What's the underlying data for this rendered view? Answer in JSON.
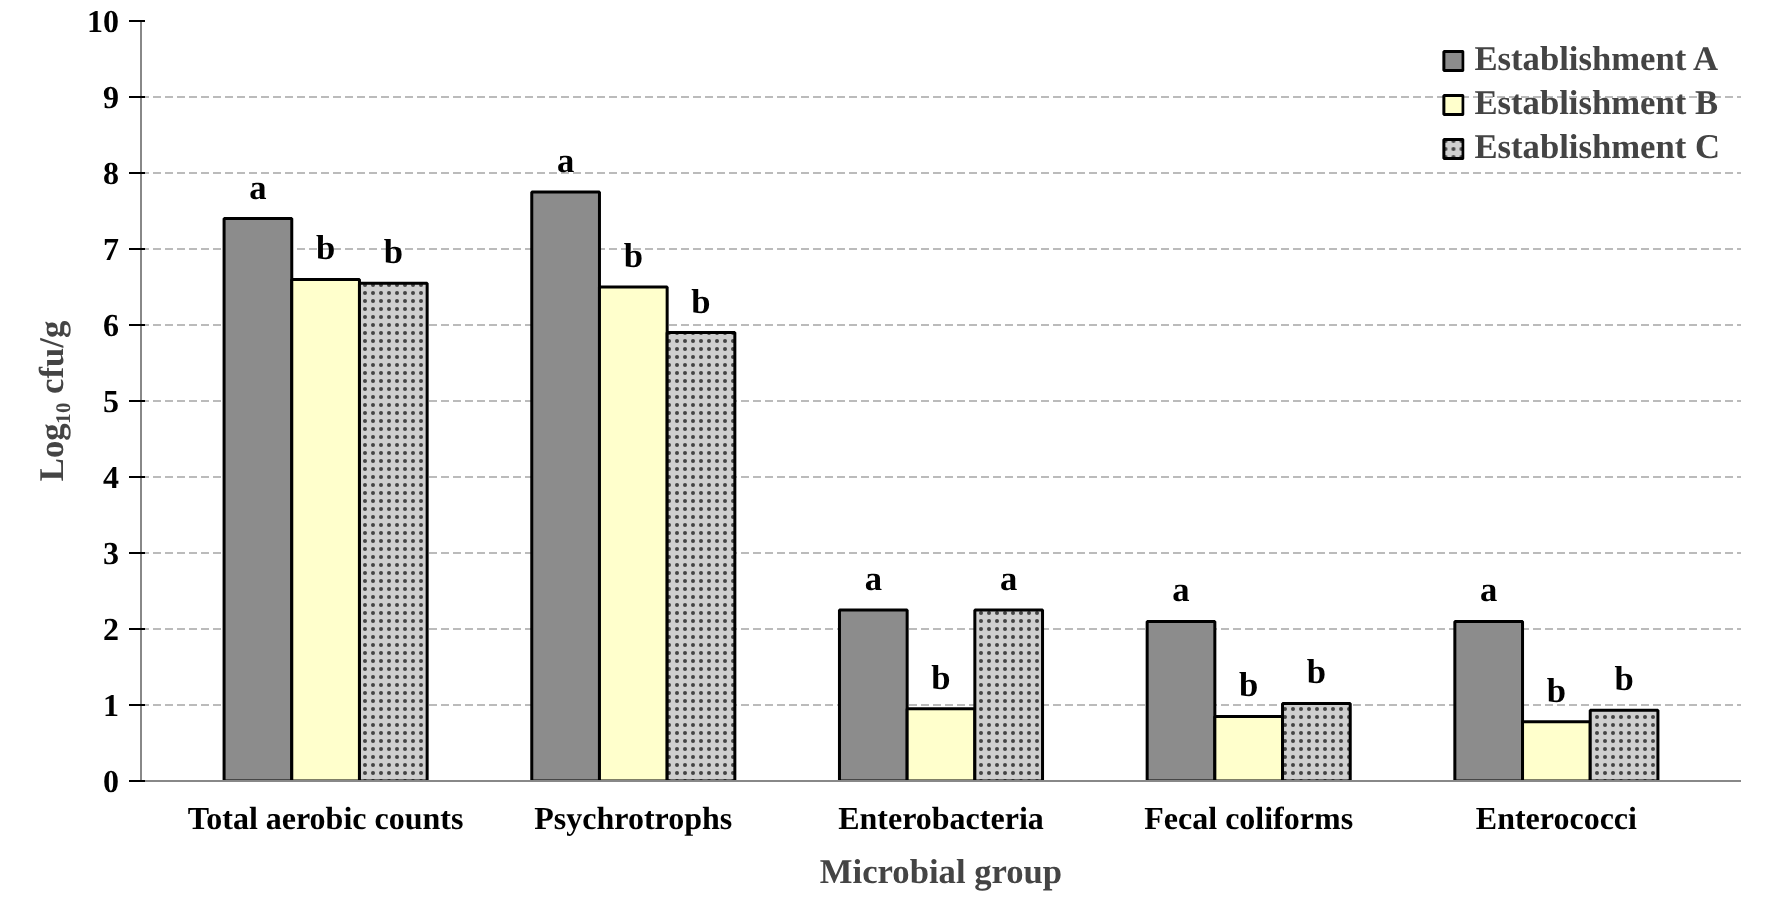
{
  "chart_data": {
    "type": "bar",
    "xlabel": "Microbial group",
    "ylabel": "Log₁₀ cfu/g",
    "categories": [
      "Total aerobic counts",
      "Psychrotrophs",
      "Enterobacteria",
      "Fecal coliforms",
      "Enterococci"
    ],
    "series": [
      {
        "name": "Establishment A",
        "color": "#8c8c8c",
        "values": [
          7.4,
          7.75,
          2.25,
          2.1,
          2.1
        ],
        "value_labels": [
          "a",
          "a",
          "a",
          "a",
          "a"
        ]
      },
      {
        "name": "Establishment B",
        "color": "#ffffcc",
        "values": [
          6.6,
          6.5,
          0.95,
          0.85,
          0.78
        ],
        "value_labels": [
          "b",
          "b",
          "b",
          "b",
          "b"
        ]
      },
      {
        "name": "Establishment C",
        "color": "#cfcfcf",
        "values": [
          6.55,
          5.9,
          2.25,
          1.02,
          0.93
        ],
        "value_labels": [
          "b",
          "b",
          "a",
          "b",
          "b"
        ]
      }
    ],
    "ylim": [
      0,
      10
    ],
    "yticks": [
      0,
      1,
      2,
      3,
      4,
      5,
      6,
      7,
      8,
      9,
      10
    ],
    "grid": "y",
    "legend": "top right"
  }
}
